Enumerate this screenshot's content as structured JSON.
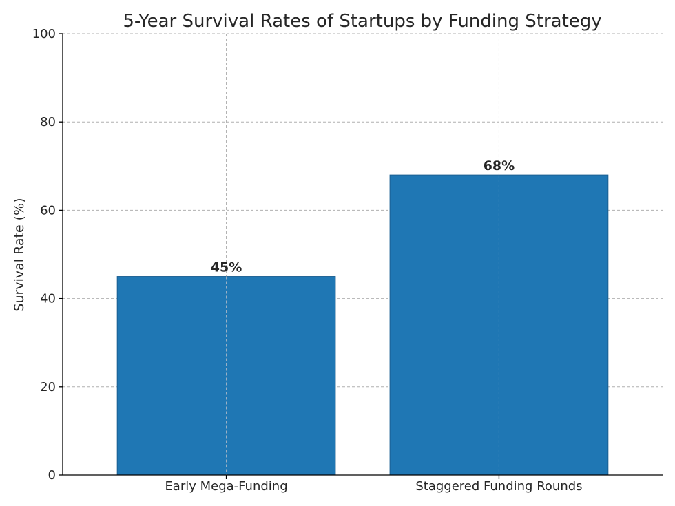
{
  "chart_data": {
    "type": "bar",
    "title": "5-Year Survival Rates of Startups by Funding Strategy",
    "xlabel": "",
    "ylabel": "Survival Rate (%)",
    "categories": [
      "Early Mega-Funding",
      "Staggered Funding Rounds"
    ],
    "values": [
      45,
      68
    ],
    "value_labels": [
      "45%",
      "68%"
    ],
    "ylim": [
      0,
      100
    ],
    "yticks": [
      0,
      20,
      40,
      60,
      80,
      100
    ],
    "ytick_labels": [
      "0",
      "20",
      "40",
      "60",
      "80",
      "100"
    ],
    "grid": true,
    "bar_color": "#1f77b4"
  }
}
